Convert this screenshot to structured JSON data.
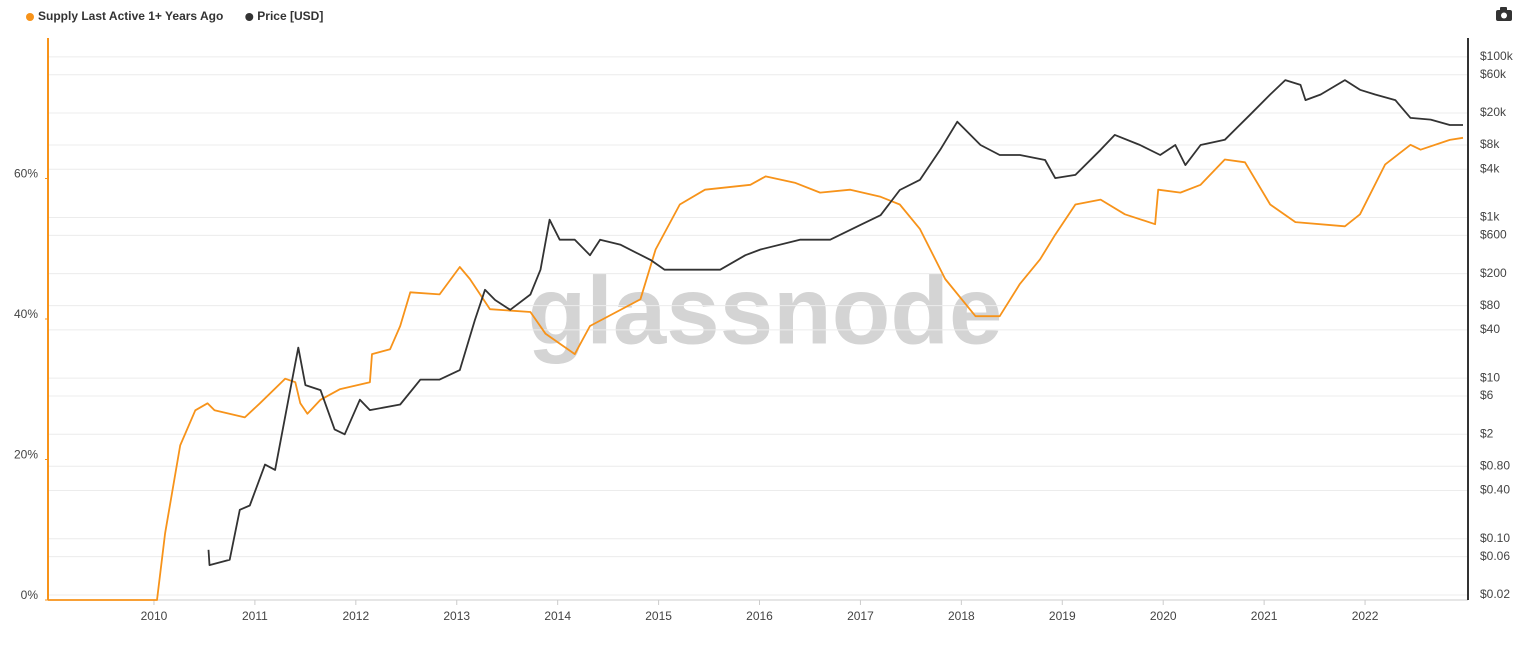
{
  "chart_data": {
    "type": "line",
    "watermark": "glassnode",
    "xlim": [
      2008.95,
      2023.02
    ],
    "xticks": [
      2010,
      2011,
      2012,
      2013,
      2014,
      2015,
      2016,
      2017,
      2018,
      2019,
      2020,
      2021,
      2022
    ],
    "ylim": [
      0,
      80
    ],
    "yticks": [
      {
        "value": 0,
        "label": "0%"
      },
      {
        "value": 20,
        "label": "20%"
      },
      {
        "value": 40,
        "label": "40%"
      },
      {
        "value": 60,
        "label": "60%"
      }
    ],
    "y2lim": [
      0.0173,
      172000
    ],
    "y2log": true,
    "y2ticks": [
      {
        "value": 0.02,
        "label": "$0.02"
      },
      {
        "value": 0.06,
        "label": "$0.06"
      },
      {
        "value": 0.1,
        "label": "$0.10"
      },
      {
        "value": 0.4,
        "label": "$0.40"
      },
      {
        "value": 0.8,
        "label": "$0.80"
      },
      {
        "value": 2,
        "label": "$2"
      },
      {
        "value": 6,
        "label": "$6"
      },
      {
        "value": 10,
        "label": "$10"
      },
      {
        "value": 40,
        "label": "$40"
      },
      {
        "value": 80,
        "label": "$80"
      },
      {
        "value": 200,
        "label": "$200"
      },
      {
        "value": 600,
        "label": "$600"
      },
      {
        "value": 1000,
        "label": "$1k"
      },
      {
        "value": 4000,
        "label": "$4k"
      },
      {
        "value": 8000,
        "label": "$8k"
      },
      {
        "value": 20000,
        "label": "$20k"
      },
      {
        "value": 60000,
        "label": "$60k"
      },
      {
        "value": 100000,
        "label": "$100k"
      }
    ],
    "grid": true,
    "series": [
      {
        "name": "Supply Last Active 1+ Years Ago",
        "color": "#f7931a",
        "axis": "y",
        "x": [
          2008.95,
          2010.03,
          2010.11,
          2010.26,
          2010.41,
          2010.53,
          2010.6,
          2010.9,
          2011.05,
          2011.3,
          2011.4,
          2011.45,
          2011.52,
          2011.65,
          2011.84,
          2012.14,
          2012.16,
          2012.34,
          2012.44,
          2012.54,
          2012.83,
          2013.03,
          2013.13,
          2013.33,
          2013.73,
          2013.88,
          2014.17,
          2014.32,
          2014.82,
          2014.97,
          2015.21,
          2015.46,
          2015.91,
          2016.06,
          2016.35,
          2016.6,
          2016.9,
          2017.2,
          2017.39,
          2017.59,
          2017.84,
          2018.14,
          2018.38,
          2018.58,
          2018.78,
          2018.93,
          2019.13,
          2019.38,
          2019.62,
          2019.92,
          2019.95,
          2020.17,
          2020.37,
          2020.61,
          2020.81,
          2021.06,
          2021.31,
          2021.8,
          2021.95,
          2022.2,
          2022.45,
          2022.55,
          2022.84,
          2022.97
        ],
        "values": [
          0,
          0,
          9.5,
          22,
          27,
          28,
          27,
          26,
          28,
          31.5,
          31,
          28,
          26.5,
          28.5,
          30,
          31,
          35,
          35.7,
          39,
          43.8,
          43.5,
          47.4,
          45.7,
          41.4,
          41,
          37.9,
          35,
          39,
          42.8,
          49.9,
          56.3,
          58.4,
          59.1,
          60.3,
          59.4,
          58,
          58.4,
          57.4,
          56.3,
          52.8,
          45.7,
          40.4,
          40.4,
          45,
          48.5,
          52,
          56.3,
          57,
          54.9,
          53.5,
          58.4,
          58,
          59.1,
          62.7,
          62.3,
          56.3,
          53.8,
          53.2,
          54.9,
          62,
          64.8,
          64.1,
          65.5,
          65.8
        ]
      },
      {
        "name": "Price [USD]",
        "color": "#333333",
        "axis": "y2",
        "x": [
          2010.54,
          2010.55,
          2010.75,
          2010.85,
          2010.95,
          2011.1,
          2011.2,
          2011.35,
          2011.43,
          2011.5,
          2011.65,
          2011.79,
          2011.89,
          2012.04,
          2012.14,
          2012.44,
          2012.64,
          2012.83,
          2013.03,
          2013.18,
          2013.28,
          2013.38,
          2013.53,
          2013.73,
          2013.83,
          2013.92,
          2014.02,
          2014.17,
          2014.32,
          2014.42,
          2014.62,
          2014.92,
          2015.06,
          2015.31,
          2015.61,
          2015.86,
          2016.01,
          2016.4,
          2016.7,
          2017.0,
          2017.2,
          2017.39,
          2017.59,
          2017.79,
          2017.96,
          2018.19,
          2018.38,
          2018.58,
          2018.83,
          2018.93,
          2019.13,
          2019.38,
          2019.52,
          2019.77,
          2019.97,
          2020.12,
          2020.22,
          2020.37,
          2020.61,
          2020.86,
          2021.06,
          2021.21,
          2021.36,
          2021.41,
          2021.56,
          2021.8,
          2021.95,
          2022.1,
          2022.3,
          2022.45,
          2022.65,
          2022.84,
          2022.97
        ],
        "values": [
          0.073,
          0.047,
          0.055,
          0.23,
          0.26,
          0.84,
          0.72,
          7.1,
          24,
          8.2,
          7.1,
          2.3,
          2,
          5.4,
          4,
          4.7,
          9.6,
          9.6,
          12.6,
          53,
          126,
          94,
          71,
          110,
          224,
          940,
          530,
          530,
          340,
          530,
          460,
          297,
          224,
          224,
          224,
          340,
          400,
          530,
          530,
          810,
          1070,
          2200,
          2950,
          6970,
          15600,
          8000,
          6000,
          6000,
          5200,
          3100,
          3400,
          6970,
          10700,
          8000,
          6000,
          8000,
          4500,
          8000,
          9300,
          19000,
          34000,
          51500,
          44800,
          29000,
          34000,
          51500,
          39000,
          34000,
          29000,
          17400,
          16600,
          14200,
          14200
        ]
      }
    ]
  }
}
